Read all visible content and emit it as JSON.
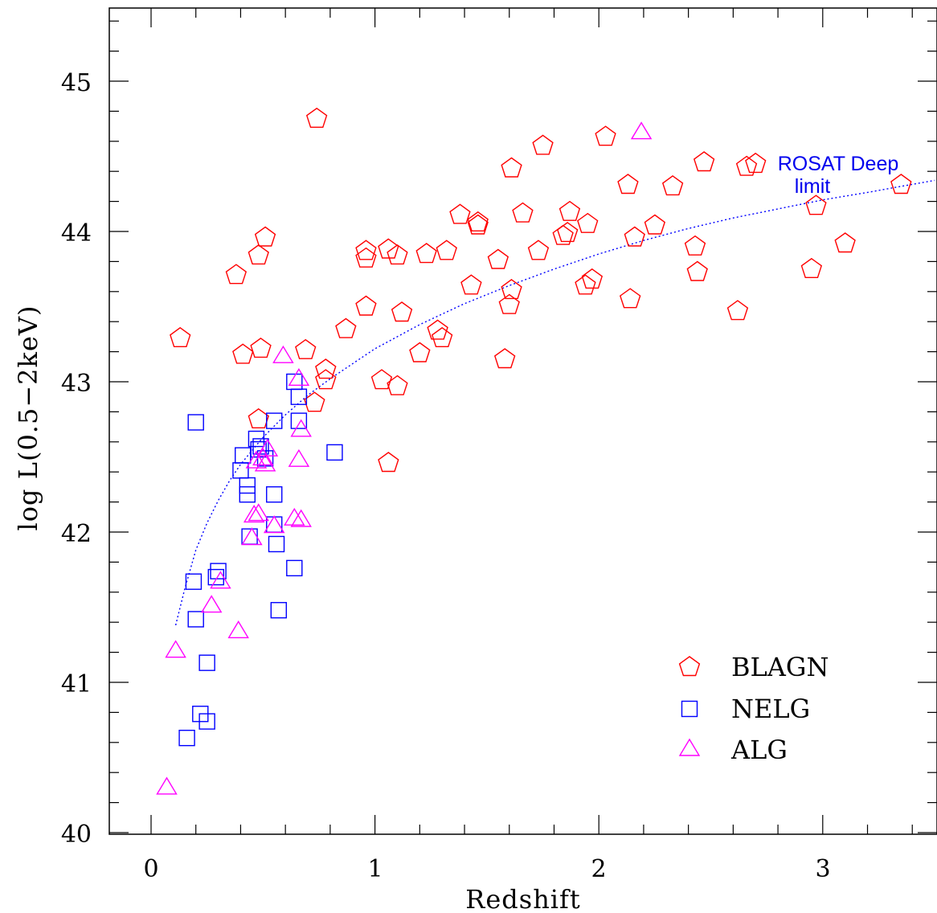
{
  "chart_data": {
    "type": "scatter",
    "xlabel": "Redshift",
    "ylabel": "log L(0.5−2keV)",
    "xlim": [
      -0.2,
      3.5
    ],
    "ylim": [
      40,
      45.5
    ],
    "x_ticks": [
      0,
      1,
      2,
      3
    ],
    "y_ticks": [
      40,
      41,
      42,
      43,
      44,
      45
    ],
    "x_tick_labels": [
      "0",
      "1",
      "2",
      "3"
    ],
    "y_tick_labels": [
      "40",
      "41",
      "42",
      "43",
      "44",
      "45"
    ],
    "grid": false,
    "legend_position": "bottom-right",
    "series": [
      {
        "name": "BLAGN",
        "marker": "pentagon",
        "color": "#ff0000",
        "points": [
          [
            0.13,
            43.29
          ],
          [
            0.38,
            43.71
          ],
          [
            0.41,
            43.18
          ],
          [
            0.49,
            43.22
          ],
          [
            0.48,
            43.84
          ],
          [
            0.51,
            43.96
          ],
          [
            0.48,
            42.75
          ],
          [
            0.74,
            44.75
          ],
          [
            0.69,
            43.21
          ],
          [
            0.73,
            42.86
          ],
          [
            0.78,
            43.08
          ],
          [
            0.78,
            43.01
          ],
          [
            0.87,
            43.35
          ],
          [
            0.96,
            43.87
          ],
          [
            0.96,
            43.82
          ],
          [
            0.96,
            43.5
          ],
          [
            1.03,
            43.01
          ],
          [
            1.06,
            43.88
          ],
          [
            1.1,
            43.84
          ],
          [
            1.1,
            42.97
          ],
          [
            1.12,
            43.46
          ],
          [
            1.06,
            42.46
          ],
          [
            1.2,
            43.19
          ],
          [
            1.23,
            43.85
          ],
          [
            1.28,
            43.34
          ],
          [
            1.3,
            43.29
          ],
          [
            1.32,
            43.87
          ],
          [
            1.38,
            44.11
          ],
          [
            1.43,
            43.64
          ],
          [
            1.46,
            44.06
          ],
          [
            1.46,
            44.04
          ],
          [
            1.55,
            43.81
          ],
          [
            1.58,
            43.15
          ],
          [
            1.6,
            43.51
          ],
          [
            1.61,
            43.61
          ],
          [
            1.61,
            44.42
          ],
          [
            1.66,
            44.12
          ],
          [
            1.73,
            43.87
          ],
          [
            1.75,
            44.57
          ],
          [
            1.84,
            43.97
          ],
          [
            1.86,
            43.99
          ],
          [
            1.87,
            44.13
          ],
          [
            1.94,
            43.64
          ],
          [
            1.95,
            44.05
          ],
          [
            1.97,
            43.68
          ],
          [
            2.03,
            44.63
          ],
          [
            2.13,
            44.31
          ],
          [
            2.14,
            43.55
          ],
          [
            2.16,
            43.96
          ],
          [
            2.25,
            44.04
          ],
          [
            2.33,
            44.3
          ],
          [
            2.43,
            43.9
          ],
          [
            2.44,
            43.73
          ],
          [
            2.47,
            44.46
          ],
          [
            2.62,
            43.47
          ],
          [
            2.66,
            44.43
          ],
          [
            2.7,
            44.45
          ],
          [
            2.95,
            43.75
          ],
          [
            2.97,
            44.17
          ],
          [
            3.1,
            43.92
          ],
          [
            3.35,
            44.31
          ]
        ]
      },
      {
        "name": "NELG",
        "marker": "square",
        "color": "#0000ff",
        "points": [
          [
            0.16,
            40.63
          ],
          [
            0.19,
            41.67
          ],
          [
            0.2,
            42.73
          ],
          [
            0.2,
            41.42
          ],
          [
            0.22,
            40.79
          ],
          [
            0.25,
            40.74
          ],
          [
            0.25,
            41.13
          ],
          [
            0.29,
            41.7
          ],
          [
            0.3,
            41.74
          ],
          [
            0.4,
            42.41
          ],
          [
            0.41,
            42.51
          ],
          [
            0.43,
            42.31
          ],
          [
            0.43,
            42.25
          ],
          [
            0.44,
            41.97
          ],
          [
            0.47,
            42.62
          ],
          [
            0.48,
            42.55
          ],
          [
            0.49,
            42.57
          ],
          [
            0.51,
            42.49
          ],
          [
            0.55,
            42.74
          ],
          [
            0.55,
            42.25
          ],
          [
            0.55,
            42.05
          ],
          [
            0.56,
            41.92
          ],
          [
            0.57,
            41.48
          ],
          [
            0.64,
            41.76
          ],
          [
            0.64,
            43.0
          ],
          [
            0.66,
            42.9
          ],
          [
            0.66,
            42.74
          ],
          [
            0.82,
            42.53
          ]
        ]
      },
      {
        "name": "ALG",
        "marker": "triangle",
        "color": "#ff00ff",
        "points": [
          [
            0.07,
            40.3
          ],
          [
            0.11,
            41.21
          ],
          [
            0.27,
            41.51
          ],
          [
            0.31,
            41.67
          ],
          [
            0.39,
            41.34
          ],
          [
            0.45,
            41.96
          ],
          [
            0.46,
            42.11
          ],
          [
            0.47,
            42.47
          ],
          [
            0.48,
            42.12
          ],
          [
            0.5,
            42.49
          ],
          [
            0.51,
            42.45
          ],
          [
            0.52,
            42.55
          ],
          [
            0.55,
            42.04
          ],
          [
            0.59,
            43.17
          ],
          [
            0.64,
            42.09
          ],
          [
            0.66,
            43.02
          ],
          [
            0.67,
            42.68
          ],
          [
            0.66,
            42.48
          ],
          [
            0.67,
            42.08
          ],
          [
            2.19,
            44.66
          ]
        ]
      }
    ],
    "reference_curve": {
      "name": "ROSAT Deep limit",
      "style": "dotted",
      "color": "#0000ff",
      "points": [
        [
          0.11,
          41.38
        ],
        [
          0.15,
          41.62
        ],
        [
          0.2,
          41.88
        ],
        [
          0.25,
          42.06
        ],
        [
          0.3,
          42.21
        ],
        [
          0.35,
          42.34
        ],
        [
          0.4,
          42.45
        ],
        [
          0.5,
          42.63
        ],
        [
          0.6,
          42.78
        ],
        [
          0.7,
          42.91
        ],
        [
          0.8,
          43.02
        ],
        [
          0.9,
          43.12
        ],
        [
          1.0,
          43.22
        ],
        [
          1.2,
          43.38
        ],
        [
          1.4,
          43.52
        ],
        [
          1.6,
          43.64
        ],
        [
          1.8,
          43.75
        ],
        [
          2.0,
          43.85
        ],
        [
          2.2,
          43.94
        ],
        [
          2.4,
          44.02
        ],
        [
          2.6,
          44.09
        ],
        [
          2.8,
          44.15
        ],
        [
          3.0,
          44.21
        ],
        [
          3.2,
          44.26
        ],
        [
          3.5,
          44.34
        ]
      ]
    },
    "annotation": {
      "line1": "ROSAT Deep",
      "line2": "limit"
    }
  }
}
